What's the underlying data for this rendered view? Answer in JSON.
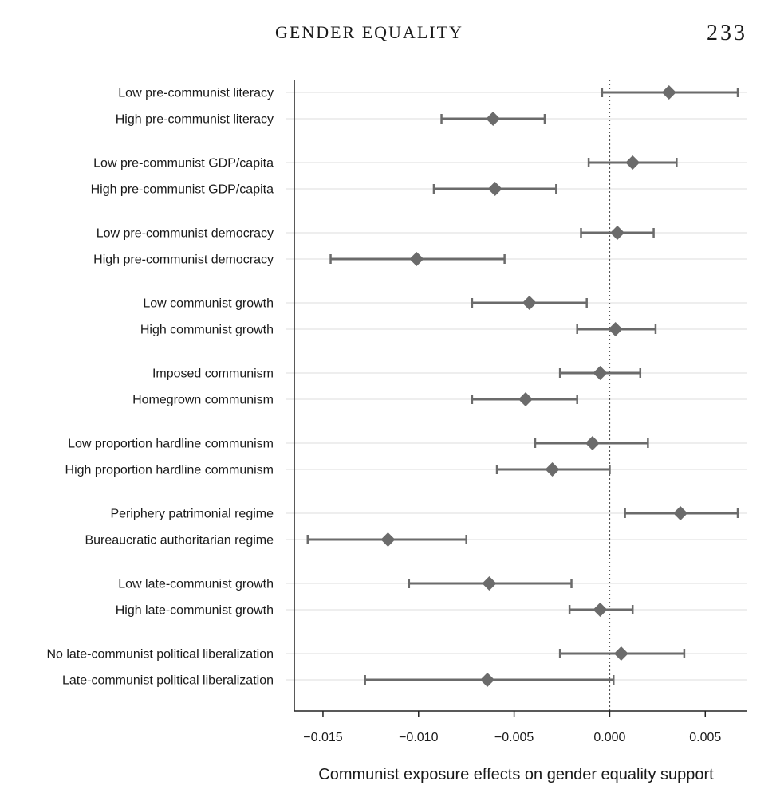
{
  "page": {
    "running_head": "GENDER EQUALITY",
    "page_number": "233"
  },
  "chart_data": {
    "type": "dot-whisker",
    "xlabel": "Communist exposure effects on gender equality support",
    "xlim": [
      -0.0165,
      0.0072
    ],
    "xticks": [
      -0.015,
      -0.01,
      -0.005,
      0.0,
      0.005
    ],
    "xtick_labels": [
      "−0.015",
      "−0.010",
      "−0.005",
      "0.000",
      "0.005"
    ],
    "reference_line": 0.0,
    "grid": "horizontal",
    "marker_color": "#6b6b6b",
    "rows": [
      {
        "label": "Low pre-communist literacy",
        "estimate": 0.0031,
        "lower": -0.0004,
        "upper": 0.0067
      },
      {
        "label": "High pre-communist literacy",
        "estimate": -0.0061,
        "lower": -0.0088,
        "upper": -0.0034
      },
      {
        "label": "Low pre-communist GDP/capita",
        "estimate": 0.0012,
        "lower": -0.0011,
        "upper": 0.0035
      },
      {
        "label": "High pre-communist GDP/capita",
        "estimate": -0.006,
        "lower": -0.0092,
        "upper": -0.0028
      },
      {
        "label": "Low pre-communist democracy",
        "estimate": 0.0004,
        "lower": -0.0015,
        "upper": 0.0023
      },
      {
        "label": "High pre-communist democracy",
        "estimate": -0.0101,
        "lower": -0.0146,
        "upper": -0.0055
      },
      {
        "label": "Low communist growth",
        "estimate": -0.0042,
        "lower": -0.0072,
        "upper": -0.0012
      },
      {
        "label": "High communist growth",
        "estimate": 0.0003,
        "lower": -0.0017,
        "upper": 0.0024
      },
      {
        "label": "Imposed communism",
        "estimate": -0.0005,
        "lower": -0.0026,
        "upper": 0.0016
      },
      {
        "label": "Homegrown communism",
        "estimate": -0.0044,
        "lower": -0.0072,
        "upper": -0.0017
      },
      {
        "label": "Low proportion hardline communism",
        "estimate": -0.0009,
        "lower": -0.0039,
        "upper": 0.002
      },
      {
        "label": "High proportion hardline communism",
        "estimate": -0.003,
        "lower": -0.0059,
        "upper": 0.0
      },
      {
        "label": "Periphery patrimonial regime",
        "estimate": 0.0037,
        "lower": 0.0008,
        "upper": 0.0067
      },
      {
        "label": "Bureaucratic authoritarian regime",
        "estimate": -0.0116,
        "lower": -0.0158,
        "upper": -0.0075
      },
      {
        "label": "Low late-communist growth",
        "estimate": -0.0063,
        "lower": -0.0105,
        "upper": -0.002
      },
      {
        "label": "High late-communist growth",
        "estimate": -0.0005,
        "lower": -0.0021,
        "upper": 0.0012
      },
      {
        "label": "No late-communist political liberalization",
        "estimate": 0.0006,
        "lower": -0.0026,
        "upper": 0.0039
      },
      {
        "label": "Late-communist political liberalization",
        "estimate": -0.0064,
        "lower": -0.0128,
        "upper": 0.0002
      }
    ]
  }
}
